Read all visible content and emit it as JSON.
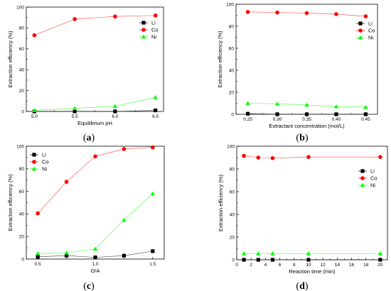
{
  "chart_data": [
    {
      "panel": "(a)",
      "type": "line",
      "xlabel": "Equilibrium pH",
      "ylabel": "Extraction efficiency (%)",
      "xlim": [
        4.9,
        6.6
      ],
      "ylim": [
        0,
        100
      ],
      "xticks": [
        5.0,
        5.5,
        6.0,
        6.5
      ],
      "xtick_labels": [
        "5.0",
        "5.5",
        "6.0",
        "6.5"
      ],
      "yticks": [
        0,
        20,
        40,
        60,
        80,
        100
      ],
      "grid": false,
      "legend": "top-right",
      "x": [
        5.0,
        5.5,
        6.0,
        6.5
      ],
      "series": [
        {
          "name": "Li",
          "color": "#000000",
          "marker": "square",
          "values": [
            0,
            0,
            0,
            1
          ]
        },
        {
          "name": "Co",
          "color": "#ff0000",
          "marker": "circle",
          "values": [
            73,
            88.5,
            91,
            92
          ]
        },
        {
          "name": "Ni",
          "color": "#00ff00",
          "marker": "triangle",
          "values": [
            1,
            3,
            5,
            13.5
          ]
        }
      ]
    },
    {
      "panel": "(b)",
      "type": "line",
      "xlabel": "Extractant concentration (mol/L)",
      "ylabel": "Extraction efficiency (%)",
      "xlim": [
        0.23,
        0.47
      ],
      "ylim": [
        0,
        100
      ],
      "xticks": [
        0.25,
        0.3,
        0.35,
        0.4,
        0.45
      ],
      "xtick_labels": [
        "0.25",
        "0.30",
        "0.35",
        "0.40",
        "0.45"
      ],
      "yticks": [
        0,
        20,
        40,
        60,
        80,
        100
      ],
      "grid": false,
      "legend": "top-right",
      "x": [
        0.25,
        0.3,
        0.35,
        0.4,
        0.45
      ],
      "series": [
        {
          "name": "Li",
          "color": "#000000",
          "marker": "square",
          "values": [
            0.5,
            0,
            0,
            0,
            0
          ]
        },
        {
          "name": "Co",
          "color": "#ff0000",
          "marker": "circle",
          "values": [
            93,
            92.5,
            92,
            91,
            89
          ]
        },
        {
          "name": "Ni",
          "color": "#00ff00",
          "marker": "triangle",
          "values": [
            10,
            9.5,
            8.5,
            7,
            6.5
          ]
        }
      ]
    },
    {
      "panel": "(c)",
      "type": "line",
      "xlabel": "O/A",
      "ylabel": "Extraction efficiency (%)",
      "xlim": [
        0.4,
        1.6
      ],
      "ylim": [
        0,
        100
      ],
      "xticks": [
        0.5,
        1.0,
        1.5
      ],
      "xtick_labels": [
        "0.5",
        "1.0",
        "1.5"
      ],
      "yticks": [
        0,
        20,
        40,
        60,
        80,
        100
      ],
      "grid": false,
      "legend": "top-left",
      "x": [
        0.5,
        0.75,
        1.0,
        1.25,
        1.5
      ],
      "series": [
        {
          "name": "Li",
          "color": "#000000",
          "marker": "square",
          "values": [
            2,
            3,
            1.5,
            3,
            7
          ]
        },
        {
          "name": "Co",
          "color": "#ff0000",
          "marker": "circle",
          "values": [
            40.5,
            68.5,
            91,
            97.5,
            99
          ]
        },
        {
          "name": "Ni",
          "color": "#00ff00",
          "marker": "triangle",
          "values": [
            5,
            5.5,
            9,
            34.5,
            58
          ]
        }
      ]
    },
    {
      "panel": "(d)",
      "type": "line",
      "xlabel": "Reaction time (min)",
      "ylabel": "Extraction efficiency (%)",
      "xlim": [
        0,
        21
      ],
      "ylim": [
        0,
        100
      ],
      "xticks": [
        0,
        2,
        4,
        6,
        8,
        10,
        12,
        14,
        16,
        18,
        20
      ],
      "xtick_labels": [
        "0",
        "2",
        "4",
        "6",
        "8",
        "10",
        "12",
        "14",
        "16",
        "18",
        "20"
      ],
      "yticks": [
        0,
        20,
        40,
        60,
        80,
        100
      ],
      "grid": false,
      "legend": "right",
      "x": [
        1,
        3,
        5,
        10,
        20
      ],
      "series": [
        {
          "name": "Li",
          "color": "#000000",
          "marker": "square",
          "values": [
            0,
            0,
            0,
            0,
            0
          ]
        },
        {
          "name": "Co",
          "color": "#ff0000",
          "marker": "circle",
          "values": [
            91.5,
            90,
            89.5,
            90.5,
            90.5
          ]
        },
        {
          "name": "Ni",
          "color": "#00ff00",
          "marker": "triangle",
          "values": [
            5.5,
            5.5,
            5.5,
            5.5,
            5.5
          ]
        }
      ]
    }
  ]
}
